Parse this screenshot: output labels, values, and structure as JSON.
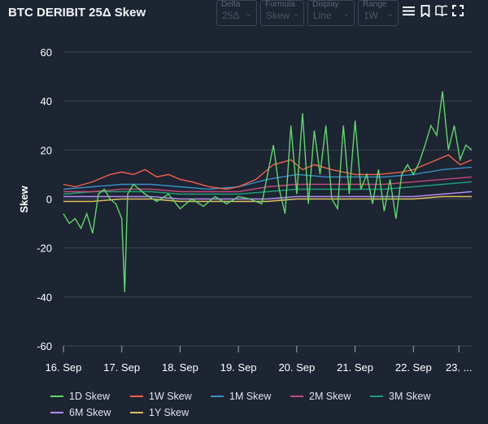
{
  "title": "BTC DERIBIT 25Δ Skew",
  "controls": [
    {
      "label": "Delta",
      "value": "25Δ"
    },
    {
      "label": "Formula",
      "value": "Skew"
    },
    {
      "label": "Display",
      "value": "Line"
    },
    {
      "label": "Range",
      "value": "1W"
    }
  ],
  "tool_icons": [
    "menu-icon",
    "bookmark-icon",
    "book-icon",
    "fullscreen-icon"
  ],
  "colors": {
    "1D Skew": "#5fd86a",
    "1W Skew": "#f4604a",
    "1M Skew": "#3a8fc4",
    "2M Skew": "#c04a78",
    "3M Skew": "#1f9e78",
    "6M Skew": "#b58cf0",
    "1Y Skew": "#e0c060"
  },
  "chart_data": {
    "type": "line",
    "ylabel": "Skew",
    "ylim": [
      -60,
      60
    ],
    "yticks": [
      60,
      40,
      20,
      0,
      -20,
      -40,
      -60
    ],
    "xlim": [
      0,
      7.0
    ],
    "xticks": [
      {
        "label": "16. Sep",
        "x": 0
      },
      {
        "label": "17. Sep",
        "x": 1
      },
      {
        "label": "18. Sep",
        "x": 2
      },
      {
        "label": "19. Sep",
        "x": 3
      },
      {
        "label": "20. Sep",
        "x": 4
      },
      {
        "label": "21. Sep",
        "x": 5
      },
      {
        "label": "22. Sep",
        "x": 6
      },
      {
        "label": "23. ...",
        "x": 6.78
      }
    ],
    "grid": true,
    "legend_position": "bottom",
    "series": [
      {
        "name": "1D Skew",
        "points": [
          [
            0,
            -6
          ],
          [
            0.1,
            -10
          ],
          [
            0.2,
            -8
          ],
          [
            0.3,
            -12
          ],
          [
            0.4,
            -6
          ],
          [
            0.5,
            -14
          ],
          [
            0.6,
            2
          ],
          [
            0.7,
            4
          ],
          [
            0.8,
            0
          ],
          [
            0.9,
            -2
          ],
          [
            1.0,
            -8
          ],
          [
            1.05,
            -38
          ],
          [
            1.1,
            2
          ],
          [
            1.2,
            6
          ],
          [
            1.4,
            2
          ],
          [
            1.6,
            -1
          ],
          [
            1.8,
            2
          ],
          [
            2.0,
            -4
          ],
          [
            2.2,
            0
          ],
          [
            2.4,
            -3
          ],
          [
            2.6,
            1
          ],
          [
            2.8,
            -2
          ],
          [
            3.0,
            1
          ],
          [
            3.2,
            0
          ],
          [
            3.4,
            -2
          ],
          [
            3.6,
            22
          ],
          [
            3.7,
            4
          ],
          [
            3.8,
            -6
          ],
          [
            3.9,
            30
          ],
          [
            4.0,
            2
          ],
          [
            4.1,
            35
          ],
          [
            4.2,
            -2
          ],
          [
            4.3,
            28
          ],
          [
            4.4,
            10
          ],
          [
            4.5,
            30
          ],
          [
            4.6,
            0
          ],
          [
            4.7,
            -4
          ],
          [
            4.8,
            30
          ],
          [
            4.9,
            2
          ],
          [
            5.0,
            32
          ],
          [
            5.1,
            4
          ],
          [
            5.2,
            10
          ],
          [
            5.3,
            -2
          ],
          [
            5.4,
            12
          ],
          [
            5.5,
            -5
          ],
          [
            5.6,
            8
          ],
          [
            5.7,
            -8
          ],
          [
            5.8,
            10
          ],
          [
            5.9,
            14
          ],
          [
            6.0,
            10
          ],
          [
            6.1,
            15
          ],
          [
            6.2,
            22
          ],
          [
            6.3,
            30
          ],
          [
            6.4,
            26
          ],
          [
            6.5,
            44
          ],
          [
            6.6,
            20
          ],
          [
            6.7,
            30
          ],
          [
            6.8,
            16
          ],
          [
            6.9,
            22
          ],
          [
            7.0,
            20
          ]
        ]
      },
      {
        "name": "1W Skew",
        "points": [
          [
            0,
            6
          ],
          [
            0.2,
            5
          ],
          [
            0.5,
            7
          ],
          [
            0.8,
            10
          ],
          [
            1.0,
            11
          ],
          [
            1.2,
            10
          ],
          [
            1.4,
            12
          ],
          [
            1.6,
            9
          ],
          [
            1.8,
            10
          ],
          [
            2.0,
            8
          ],
          [
            2.2,
            7
          ],
          [
            2.5,
            5
          ],
          [
            2.8,
            4
          ],
          [
            3.0,
            5
          ],
          [
            3.3,
            8
          ],
          [
            3.6,
            14
          ],
          [
            3.9,
            16
          ],
          [
            4.1,
            12
          ],
          [
            4.3,
            14
          ],
          [
            4.6,
            12
          ],
          [
            5.0,
            10
          ],
          [
            5.4,
            10
          ],
          [
            5.8,
            11
          ],
          [
            6.0,
            12
          ],
          [
            6.2,
            14
          ],
          [
            6.4,
            16
          ],
          [
            6.6,
            18
          ],
          [
            6.8,
            14
          ],
          [
            7.0,
            16
          ]
        ]
      },
      {
        "name": "1M Skew",
        "points": [
          [
            0,
            4
          ],
          [
            0.5,
            5
          ],
          [
            1.0,
            6
          ],
          [
            1.5,
            6
          ],
          [
            2.0,
            5
          ],
          [
            2.5,
            4
          ],
          [
            3.0,
            5
          ],
          [
            3.5,
            8
          ],
          [
            4.0,
            10
          ],
          [
            4.5,
            9
          ],
          [
            5.0,
            9
          ],
          [
            5.5,
            9
          ],
          [
            6.0,
            10
          ],
          [
            6.5,
            12
          ],
          [
            7.0,
            13
          ]
        ]
      },
      {
        "name": "2M Skew",
        "points": [
          [
            0,
            3
          ],
          [
            0.5,
            3
          ],
          [
            1.0,
            4
          ],
          [
            1.5,
            4
          ],
          [
            2.0,
            3
          ],
          [
            2.5,
            3
          ],
          [
            3.0,
            3
          ],
          [
            3.5,
            5
          ],
          [
            4.0,
            6
          ],
          [
            4.5,
            6
          ],
          [
            5.0,
            6
          ],
          [
            5.5,
            6
          ],
          [
            6.0,
            7
          ],
          [
            6.5,
            8
          ],
          [
            7.0,
            9
          ]
        ]
      },
      {
        "name": "3M Skew",
        "points": [
          [
            0,
            2
          ],
          [
            0.5,
            3
          ],
          [
            1.0,
            3
          ],
          [
            1.5,
            3
          ],
          [
            2.0,
            2
          ],
          [
            2.5,
            2
          ],
          [
            3.0,
            2
          ],
          [
            3.5,
            3
          ],
          [
            4.0,
            4
          ],
          [
            4.5,
            4
          ],
          [
            5.0,
            4
          ],
          [
            5.5,
            4
          ],
          [
            6.0,
            5
          ],
          [
            6.5,
            6
          ],
          [
            7.0,
            7
          ]
        ]
      },
      {
        "name": "6M Skew",
        "points": [
          [
            0,
            1
          ],
          [
            0.5,
            1
          ],
          [
            1.0,
            1
          ],
          [
            1.5,
            1
          ],
          [
            2.0,
            0
          ],
          [
            2.5,
            0
          ],
          [
            3.0,
            0
          ],
          [
            3.5,
            0
          ],
          [
            4.0,
            1
          ],
          [
            4.5,
            1
          ],
          [
            5.0,
            1
          ],
          [
            5.5,
            1
          ],
          [
            6.0,
            1
          ],
          [
            6.5,
            2
          ],
          [
            7.0,
            3
          ]
        ]
      },
      {
        "name": "1Y Skew",
        "points": [
          [
            0,
            -1
          ],
          [
            0.5,
            -1
          ],
          [
            1.0,
            0
          ],
          [
            1.5,
            0
          ],
          [
            2.0,
            -1
          ],
          [
            2.5,
            -1
          ],
          [
            3.0,
            -1
          ],
          [
            3.5,
            -1
          ],
          [
            4.0,
            0
          ],
          [
            4.5,
            0
          ],
          [
            5.0,
            0
          ],
          [
            5.5,
            0
          ],
          [
            6.0,
            0
          ],
          [
            6.5,
            1
          ],
          [
            7.0,
            1
          ]
        ]
      }
    ]
  }
}
